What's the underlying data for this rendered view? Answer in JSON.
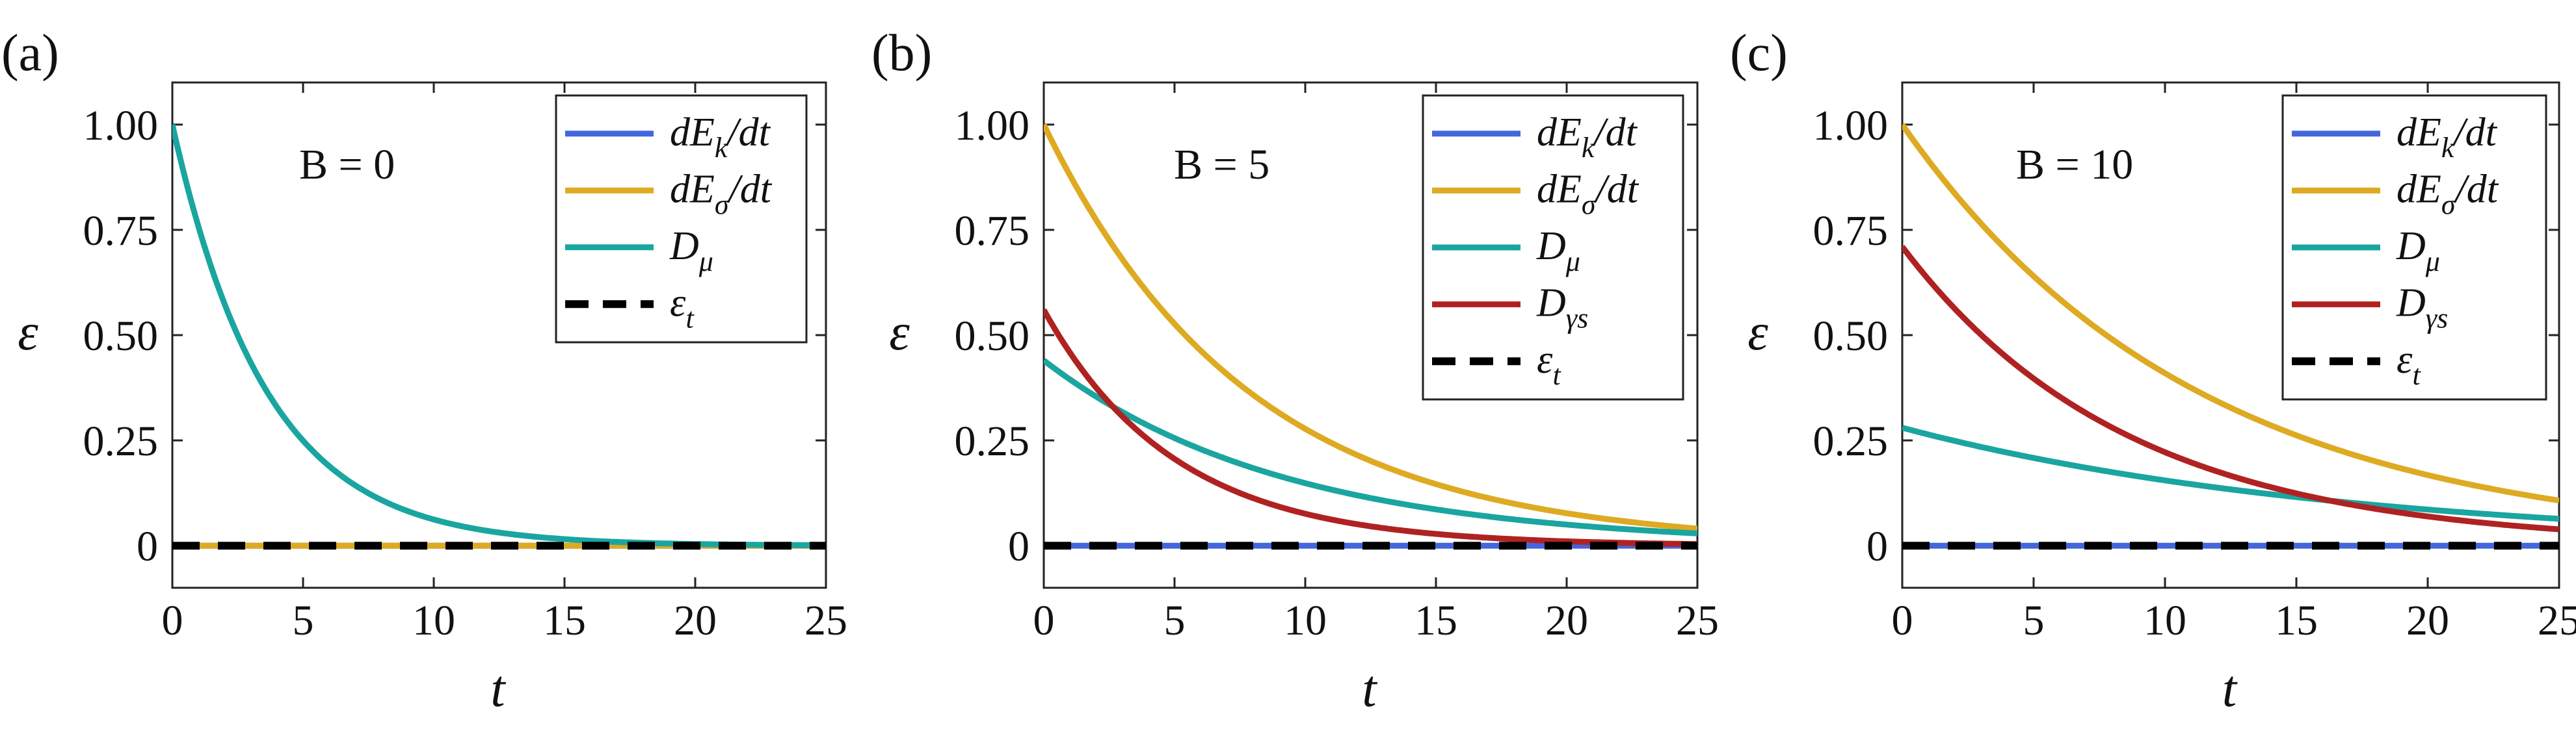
{
  "chart_data": [
    {
      "type": "line",
      "panel_label": "(a)",
      "annotation": "B = 0",
      "xlabel": "t",
      "ylabel": "ε",
      "xlim": [
        0,
        25
      ],
      "ylim": [
        -0.1,
        1.1
      ],
      "xticks": [
        0,
        5,
        10,
        15,
        20,
        25
      ],
      "xtick_labels": [
        "0",
        "5",
        "10",
        "15",
        "20",
        "25"
      ],
      "yticks": [
        0,
        0.25,
        0.5,
        0.75,
        1.0
      ],
      "ytick_labels": [
        "0",
        "0.25",
        "0.50",
        "0.75",
        "1.00"
      ],
      "legend_position": "top-right",
      "grid": false,
      "series": [
        {
          "name": "dE_k/dt",
          "legend": {
            "main": "dE",
            "sub": "k",
            "tail": "/dt"
          },
          "color": "#4466dd",
          "style": "solid",
          "model": {
            "a0": 0,
            "tau": 1
          }
        },
        {
          "name": "dE_σ/dt",
          "legend": {
            "main": "dE",
            "sub": "σ",
            "tail": "/dt"
          },
          "color": "#ddaa22",
          "style": "solid",
          "model": {
            "a0": 0,
            "tau": 1
          }
        },
        {
          "name": "D_μ",
          "legend": {
            "main": "D",
            "sub": "μ",
            "tail": ""
          },
          "color": "#1aa5a0",
          "style": "solid",
          "model": {
            "a0": 1.0,
            "tau": 3.6
          }
        },
        {
          "name": "ε_t",
          "legend": {
            "main": "ε",
            "sub": "t",
            "tail": ""
          },
          "color": "#000000",
          "style": "dashed",
          "model": {
            "a0": 0,
            "tau": 1
          }
        }
      ]
    },
    {
      "type": "line",
      "panel_label": "(b)",
      "annotation": "B = 5",
      "xlabel": "t",
      "ylabel": "ε",
      "xlim": [
        0,
        25
      ],
      "ylim": [
        -0.1,
        1.1
      ],
      "xticks": [
        0,
        5,
        10,
        15,
        20,
        25
      ],
      "xtick_labels": [
        "0",
        "5",
        "10",
        "15",
        "20",
        "25"
      ],
      "yticks": [
        0,
        0.25,
        0.5,
        0.75,
        1.0
      ],
      "ytick_labels": [
        "0",
        "0.25",
        "0.50",
        "0.75",
        "1.00"
      ],
      "legend_position": "top-right",
      "grid": false,
      "series": [
        {
          "name": "dE_k/dt",
          "legend": {
            "main": "dE",
            "sub": "k",
            "tail": "/dt"
          },
          "color": "#4466dd",
          "style": "solid",
          "model": {
            "a0": 0,
            "tau": 1
          }
        },
        {
          "name": "dE_σ/dt",
          "legend": {
            "main": "dE",
            "sub": "σ",
            "tail": "/dt"
          },
          "color": "#ddaa22",
          "style": "solid",
          "model": {
            "a0": 1.0,
            "tau": 7.8
          }
        },
        {
          "name": "D_μ",
          "legend": {
            "main": "D",
            "sub": "μ",
            "tail": ""
          },
          "color": "#1aa5a0",
          "style": "solid",
          "model": {
            "a0": 0.44,
            "tau": 9.2
          }
        },
        {
          "name": "D_γs",
          "legend": {
            "main": "D",
            "sub": "γs",
            "tail": ""
          },
          "color": "#b02222",
          "style": "solid",
          "model": {
            "a0": 0.56,
            "tau": 5.0
          }
        },
        {
          "name": "ε_t",
          "legend": {
            "main": "ε",
            "sub": "t",
            "tail": ""
          },
          "color": "#000000",
          "style": "dashed",
          "model": {
            "a0": 0,
            "tau": 1
          }
        }
      ]
    },
    {
      "type": "line",
      "panel_label": "(c)",
      "annotation": "B = 10",
      "xlabel": "t",
      "ylabel": "ε",
      "xlim": [
        0,
        25
      ],
      "ylim": [
        -0.1,
        1.1
      ],
      "xticks": [
        0,
        5,
        10,
        15,
        20,
        25
      ],
      "xtick_labels": [
        "0",
        "5",
        "10",
        "15",
        "20",
        "25"
      ],
      "yticks": [
        0,
        0.25,
        0.5,
        0.75,
        1.0
      ],
      "ytick_labels": [
        "0",
        "0.25",
        "0.50",
        "0.75",
        "1.00"
      ],
      "legend_position": "top-right",
      "grid": false,
      "series": [
        {
          "name": "dE_k/dt",
          "legend": {
            "main": "dE",
            "sub": "k",
            "tail": "/dt"
          },
          "color": "#4466dd",
          "style": "solid",
          "model": {
            "a0": 0,
            "tau": 1
          }
        },
        {
          "name": "dE_σ/dt",
          "legend": {
            "main": "dE",
            "sub": "σ",
            "tail": "/dt"
          },
          "color": "#ddaa22",
          "style": "solid",
          "model": {
            "a0": 1.0,
            "tau": 11.2
          }
        },
        {
          "name": "D_μ",
          "legend": {
            "main": "D",
            "sub": "μ",
            "tail": ""
          },
          "color": "#1aa5a0",
          "style": "solid",
          "model": {
            "a0": 0.28,
            "tau": 16.9
          }
        },
        {
          "name": "D_γs",
          "legend": {
            "main": "D",
            "sub": "γs",
            "tail": ""
          },
          "color": "#b02222",
          "style": "solid",
          "model": {
            "a0": 0.71,
            "tau": 8.6
          }
        },
        {
          "name": "ε_t",
          "legend": {
            "main": "ε",
            "sub": "t",
            "tail": ""
          },
          "color": "#000000",
          "style": "dashed",
          "model": {
            "a0": 0,
            "tau": 1
          }
        }
      ]
    }
  ]
}
